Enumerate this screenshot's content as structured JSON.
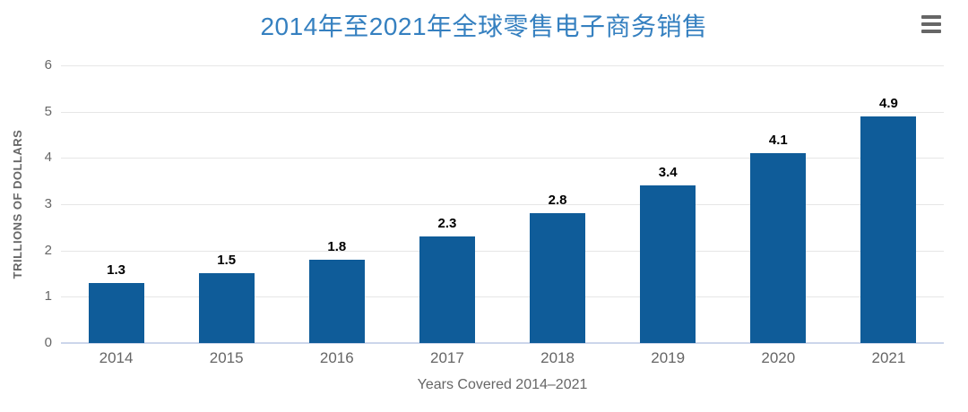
{
  "header": {
    "title": "2014年至2021年全球零售电子商务销售",
    "menu_icon": "hamburger-icon"
  },
  "chart_data": {
    "type": "bar",
    "title": "2014年至2021年全球零售电子商务销售",
    "categories": [
      "2014",
      "2015",
      "2016",
      "2017",
      "2018",
      "2019",
      "2020",
      "2021"
    ],
    "values": [
      1.3,
      1.5,
      1.8,
      2.3,
      2.8,
      3.4,
      4.1,
      4.9
    ],
    "data_labels": [
      "1.3",
      "1.5",
      "1.8",
      "2.3",
      "2.8",
      "3.4",
      "4.1",
      "4.9"
    ],
    "xlabel": "Years Covered 2014–2021",
    "ylabel": "TRILLIONS OF DOLLARS",
    "ylim": [
      0,
      6
    ],
    "yticks": [
      0,
      1,
      2,
      3,
      4,
      5,
      6
    ],
    "grid": true,
    "legend": false,
    "colors": {
      "bar": "#0f5c99",
      "title": "#3580c0",
      "axis_text": "#666666",
      "data_label": "#000000",
      "gridline": "#e6e6e6",
      "axis_line": "#ccd6eb",
      "menu_icon": "#666666"
    }
  }
}
